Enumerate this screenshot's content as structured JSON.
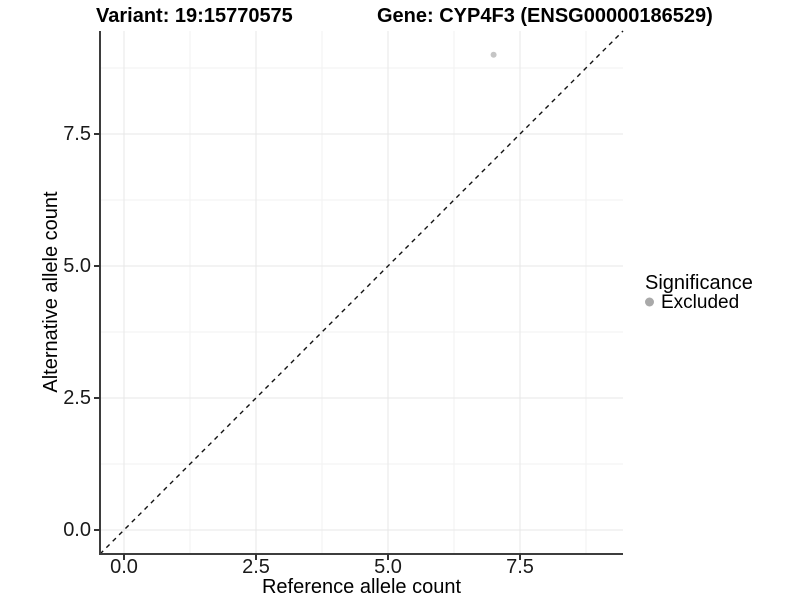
{
  "chart_data": {
    "type": "scatter",
    "title_variant": "Variant: 19:15770575",
    "title_gene": "Gene: CYP4F3 (ENSG00000186529)",
    "xlabel": "Reference allele count",
    "ylabel": "Alternative allele count",
    "x_ticks": [
      "0.0",
      "2.5",
      "5.0",
      "7.5"
    ],
    "y_ticks": [
      "0.0",
      "2.5",
      "5.0",
      "7.5"
    ],
    "x_tick_values": [
      0.0,
      2.5,
      5.0,
      7.5
    ],
    "y_tick_values": [
      0.0,
      2.5,
      5.0,
      7.5
    ],
    "xlim": [
      -0.45,
      9.45
    ],
    "ylim": [
      -0.45,
      9.45
    ],
    "grid": "major and minor gridlines on white background",
    "points": [
      {
        "x": 7,
        "y": 9,
        "series": "Excluded"
      }
    ],
    "identity_line": {
      "slope": 1,
      "intercept": 0,
      "style": "dashed"
    },
    "legend": {
      "position": "right",
      "title": "Significance",
      "items": [
        {
          "label": "Excluded",
          "color": "#c5c5c5"
        }
      ]
    }
  },
  "colors": {
    "point": "#c5c5c5",
    "legend_key": "#a9a9a9",
    "grid_major": "#e7e7e7",
    "grid_minor": "#f2f2f2",
    "axis_line": "#3d3d3d",
    "dashed_line": "#111111",
    "text": "#000000"
  }
}
